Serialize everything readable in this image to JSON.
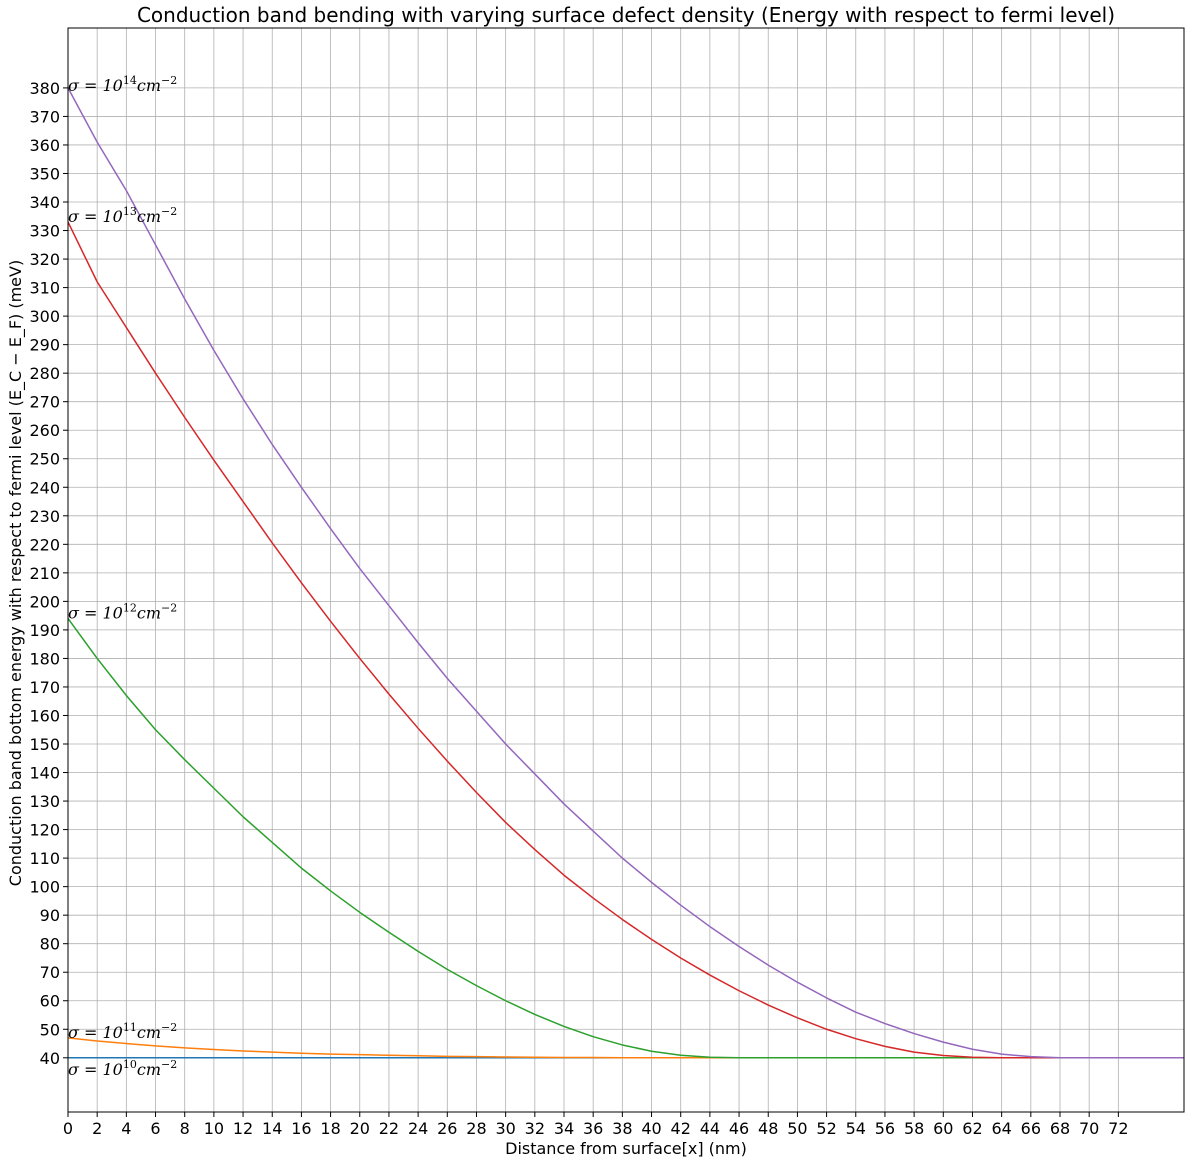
{
  "chart_data": {
    "type": "line",
    "title": "Conduction band bending with varying surface defect density (Energy with respect to fermi level)",
    "xlabel": "Distance from surface[x] (nm)",
    "ylabel": "Conduction band bottom  energy with respect to fermi level (E_C − E_F) (meV)",
    "xlim": [
      0,
      76.5
    ],
    "ylim": [
      21,
      401
    ],
    "grid": true,
    "xticks": [
      0,
      2,
      4,
      6,
      8,
      10,
      12,
      14,
      16,
      18,
      20,
      22,
      24,
      26,
      28,
      30,
      32,
      34,
      36,
      38,
      40,
      42,
      44,
      46,
      48,
      50,
      52,
      54,
      56,
      58,
      60,
      62,
      64,
      66,
      68,
      70,
      72
    ],
    "yticks": [
      40,
      50,
      60,
      70,
      80,
      90,
      100,
      110,
      120,
      130,
      140,
      150,
      160,
      170,
      180,
      190,
      200,
      210,
      220,
      230,
      240,
      250,
      260,
      270,
      280,
      290,
      300,
      310,
      320,
      330,
      340,
      350,
      360,
      370,
      380
    ],
    "x": [
      0,
      2,
      4,
      6,
      8,
      10,
      12,
      14,
      16,
      18,
      20,
      22,
      24,
      26,
      28,
      30,
      32,
      34,
      36,
      38,
      40,
      42,
      44,
      46,
      48,
      50,
      52,
      54,
      56,
      58,
      60,
      62,
      64,
      66,
      68,
      70,
      72,
      74,
      76.5
    ],
    "series": [
      {
        "color": "#1f77b4",
        "values": [
          40,
          40,
          40,
          40,
          40,
          40,
          40,
          40,
          40,
          40,
          40,
          40,
          40,
          40,
          40,
          40,
          40,
          40,
          40,
          40,
          40,
          40,
          40,
          40,
          40,
          40,
          40,
          40,
          40,
          40,
          40,
          40,
          40,
          40,
          40,
          40,
          40,
          40,
          40
        ]
      },
      {
        "color": "#ff7f0e",
        "values": [
          47,
          45.9,
          45,
          44.2,
          43.5,
          42.9,
          42.4,
          42,
          41.6,
          41.3,
          41.1,
          40.9,
          40.7,
          40.5,
          40.4,
          40.3,
          40.2,
          40.1,
          40.1,
          40,
          40,
          40,
          40,
          40,
          40,
          40,
          40,
          40,
          40,
          40,
          40,
          40,
          40,
          40,
          40,
          40,
          40,
          40,
          40
        ]
      },
      {
        "color": "#2ca02c",
        "values": [
          194,
          180,
          167,
          155,
          144.5,
          134.5,
          124.5,
          115.5,
          106.5,
          98.5,
          91,
          84,
          77.3,
          71,
          65.3,
          60,
          55.2,
          51,
          47.4,
          44.5,
          42.3,
          40.9,
          40.2,
          40,
          40,
          40,
          40,
          40,
          40,
          40,
          40,
          40,
          40,
          40,
          40,
          40,
          40,
          40,
          40
        ]
      },
      {
        "color": "#d62728",
        "values": [
          333,
          312,
          296,
          280,
          264.5,
          249.5,
          235,
          220.5,
          206.5,
          193,
          180,
          167.5,
          155.5,
          144,
          133,
          122.5,
          113,
          104,
          96,
          88.5,
          81.5,
          75,
          69,
          63.5,
          58.5,
          54,
          50,
          46.7,
          44,
          42,
          40.8,
          40.2,
          40,
          40,
          40,
          40,
          40,
          40,
          40
        ]
      },
      {
        "color": "#9467bd",
        "values": [
          380,
          361,
          344,
          325,
          306,
          288,
          271,
          255,
          240,
          225.5,
          211.5,
          198.5,
          185.5,
          173,
          161.5,
          150,
          139.5,
          129,
          119.5,
          110,
          101.5,
          93.5,
          86,
          79,
          72.5,
          66.5,
          61,
          56,
          52,
          48.5,
          45.5,
          43,
          41.3,
          40.4,
          40,
          40,
          40,
          40,
          40
        ]
      }
    ],
    "annotations": [
      {
        "base": "σ = 10",
        "exp": "14",
        "unit": "cm",
        "unit_exp": "−2",
        "x": 0,
        "y": 379
      },
      {
        "base": "σ = 10",
        "exp": "13",
        "unit": "cm",
        "unit_exp": "−2",
        "x": 0,
        "y": 333
      },
      {
        "base": "σ = 10",
        "exp": "12",
        "unit": "cm",
        "unit_exp": "−2",
        "x": 0,
        "y": 194
      },
      {
        "base": "σ = 10",
        "exp": "11",
        "unit": "cm",
        "unit_exp": "−2",
        "x": 0,
        "y": 47
      },
      {
        "base": "σ = 10",
        "exp": "10",
        "unit": "cm",
        "unit_exp": "−2",
        "x": 0,
        "y": 34
      }
    ]
  }
}
